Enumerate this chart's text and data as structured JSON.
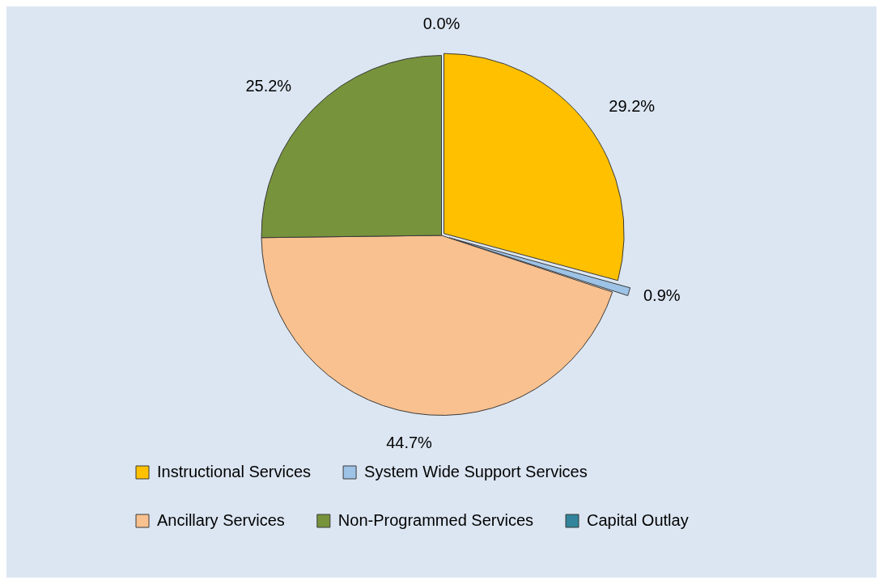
{
  "chart_data": {
    "type": "pie",
    "categories": [
      "Instructional Services",
      "System Wide Support Services",
      "Ancillary Services",
      "Non-Programmed Services",
      "Capital Outlay"
    ],
    "values": [
      29.2,
      0.9,
      44.7,
      25.2,
      0.0
    ],
    "colors": [
      "#ffc000",
      "#9dc3e6",
      "#f9c18f",
      "#77933c",
      "#31849b"
    ],
    "value_labels": [
      "29.2%",
      "0.9%",
      "44.7%",
      "25.2%",
      "0.0%"
    ],
    "legend": "bottom"
  }
}
